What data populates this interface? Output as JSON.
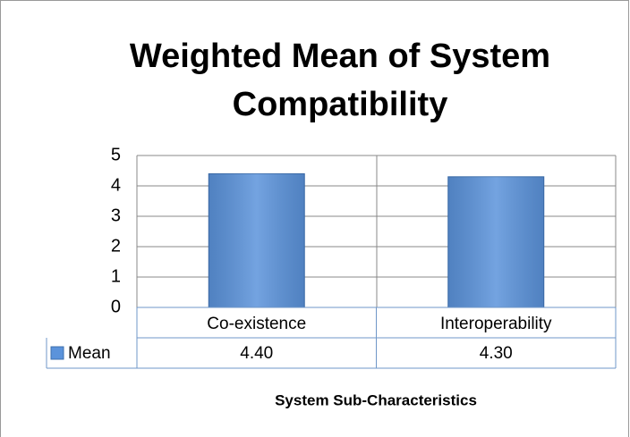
{
  "chart_data": {
    "type": "bar",
    "title": "Weighted Mean of System Compatibility",
    "categories": [
      "Co-existence",
      "Interoperability"
    ],
    "series": [
      {
        "name": "Mean",
        "color": "#5b93db",
        "values": [
          4.4,
          4.3
        ],
        "value_labels": [
          "4.40",
          "4.30"
        ]
      }
    ],
    "ylim": [
      0,
      5
    ],
    "yticks": [
      0,
      1,
      2,
      3,
      4,
      5
    ],
    "grid": true,
    "x_label": "System Sub-Characteristics"
  }
}
